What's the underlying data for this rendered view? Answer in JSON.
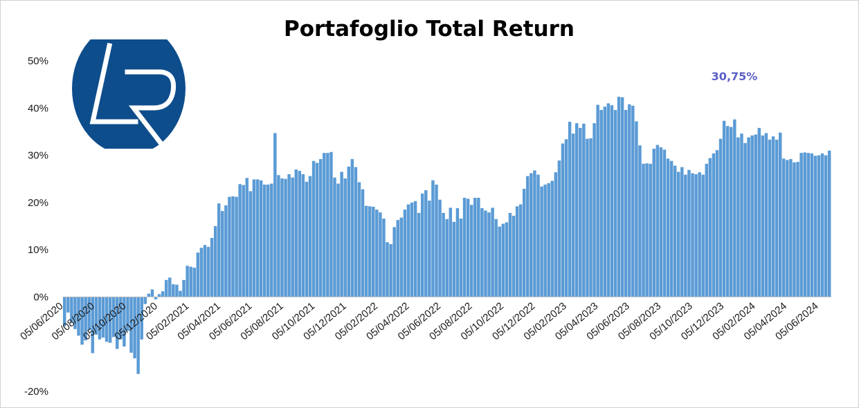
{
  "chart_data": {
    "type": "bar",
    "title": "Portafoglio Total Return",
    "xlabel": "",
    "ylabel": "",
    "ylim": [
      -20,
      50
    ],
    "yticks": [
      "-20%",
      "0%",
      "10%",
      "20%",
      "30%",
      "40%",
      "50%"
    ],
    "xticks": [
      "05/06/2020",
      "05/08/2020",
      "05/10/2020",
      "05/12/2020",
      "05/02/2021",
      "05/04/2021",
      "05/06/2021",
      "05/08/2021",
      "05/10/2021",
      "05/12/2021",
      "05/02/2022",
      "05/04/2022",
      "05/06/2022",
      "05/08/2022",
      "05/10/2022",
      "05/12/2022",
      "05/02/2023",
      "05/04/2023",
      "05/06/2023",
      "05/08/2023",
      "05/10/2023",
      "05/12/2023",
      "05/02/2024",
      "05/04/2024",
      "05/06/2024"
    ],
    "grid": false,
    "legend": "none",
    "values": [
      -6.2,
      -3.3,
      -5.4,
      -6.8,
      -8.2,
      -10.1,
      -9.2,
      -7.0,
      -11.9,
      -8.0,
      -9.0,
      -8.6,
      -9.5,
      -9.7,
      -8.5,
      -11.0,
      -9.0,
      -10.5,
      -7.2,
      -11.8,
      -13.0,
      -16.3,
      -9.0,
      -1.5,
      0.7,
      1.6,
      -0.5,
      0.6,
      1.2,
      3.6,
      4.1,
      2.7,
      2.6,
      1.3,
      3.6,
      6.6,
      6.4,
      6.2,
      9.4,
      10.4,
      11.0,
      10.6,
      12.5,
      15.0,
      19.8,
      18.2,
      19.4,
      21.2,
      21.3,
      21.2,
      23.9,
      23.7,
      25.2,
      22.4,
      24.9,
      24.9,
      24.7,
      23.8,
      23.8,
      24.0,
      34.7,
      25.8,
      25.1,
      25.0,
      26.0,
      25.3,
      27.0,
      26.7,
      26.0,
      24.4,
      25.6,
      28.8,
      28.4,
      29.2,
      30.5,
      30.5,
      30.7,
      25.3,
      24.0,
      26.5,
      25.1,
      27.6,
      29.2,
      27.5,
      24.3,
      22.8,
      19.3,
      19.2,
      19.1,
      18.5,
      17.9,
      16.6,
      11.6,
      11.2,
      14.8,
      16.3,
      16.8,
      18.5,
      19.6,
      20.0,
      20.3,
      17.8,
      21.9,
      22.6,
      20.4,
      24.7,
      23.8,
      20.6,
      17.8,
      16.5,
      18.9,
      15.9,
      18.8,
      16.6,
      21.0,
      20.8,
      19.5,
      21.0,
      21.0,
      18.8,
      18.3,
      17.9,
      18.9,
      16.5,
      14.9,
      15.5,
      15.8,
      17.8,
      17.2,
      19.2,
      19.6,
      22.9,
      25.6,
      26.2,
      26.8,
      25.9,
      23.4,
      23.8,
      24.1,
      24.6,
      26.4,
      28.9,
      32.5,
      33.4,
      37.1,
      34.6,
      36.8,
      35.8,
      36.7,
      33.5,
      33.6,
      36.8,
      40.7,
      39.6,
      40.3,
      41.0,
      40.6,
      39.6,
      42.4,
      42.3,
      39.6,
      40.8,
      40.5,
      37.2,
      32.1,
      28.2,
      28.3,
      28.2,
      31.4,
      32.2,
      31.7,
      31.2,
      29.3,
      28.8,
      27.8,
      26.5,
      27.5,
      25.9,
      26.9,
      26.2,
      26.0,
      26.4,
      25.9,
      28.2,
      29.4,
      30.4,
      31.1,
      33.5,
      37.3,
      36.2,
      36.0,
      37.6,
      33.8,
      34.6,
      32.6,
      33.8,
      34.2,
      34.4,
      35.8,
      34.2,
      34.7,
      33.3,
      34.0,
      33.3,
      34.8,
      29.3,
      29.0,
      29.2,
      28.5,
      28.6,
      30.5,
      30.6,
      30.5,
      30.4,
      29.9,
      30.0,
      30.4,
      30.0,
      31.0
    ],
    "bar_color": "#5b9bd5",
    "annotations": [
      {
        "text": "30,75%",
        "color": "#5b5fc7"
      }
    ]
  },
  "logo": {
    "text": "LR",
    "background_color": "#0e4d8c",
    "stroke_color": "#ffffff"
  }
}
